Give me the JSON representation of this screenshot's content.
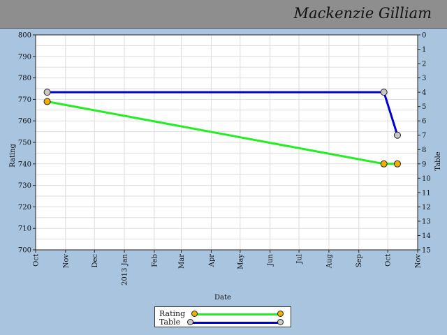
{
  "header": {
    "name": "Mackenzie Gilliam"
  },
  "chart_data": {
    "type": "line",
    "xlabel": "Date",
    "ylabel": "Rating",
    "y2label": "Table",
    "ylim": [
      700,
      800
    ],
    "y2lim": [
      0,
      15
    ],
    "y2_inverted": true,
    "grid": true,
    "legend_position": "bottom-center",
    "x_ticks": [
      "Oct",
      "Nov",
      "Dec",
      "2013 Jan",
      "Feb",
      "Mar",
      "Apr",
      "May",
      "Jun",
      "Jul",
      "Aug",
      "Sep",
      "Oct",
      "Nov"
    ],
    "y_ticks": [
      700,
      710,
      720,
      730,
      740,
      750,
      760,
      770,
      780,
      790,
      800
    ],
    "y2_ticks": [
      0,
      1,
      2,
      3,
      4,
      5,
      6,
      7,
      8,
      9,
      10,
      11,
      12,
      13,
      14,
      15
    ],
    "series": [
      {
        "name": "Rating",
        "axis": "left",
        "color": "#22ee22",
        "marker_color": "#f0b000",
        "points": [
          {
            "x": "2012-10-13",
            "y": 769
          },
          {
            "x": "2013-09-27",
            "y": 740
          },
          {
            "x": "2013-10-11",
            "y": 740
          }
        ]
      },
      {
        "name": "Table",
        "axis": "right",
        "color": "#0000cc",
        "marker_color": "#c8c8c8",
        "points": [
          {
            "x": "2012-10-13",
            "y": 4
          },
          {
            "x": "2013-09-27",
            "y": 4
          },
          {
            "x": "2013-10-11",
            "y": 7
          }
        ]
      }
    ]
  }
}
